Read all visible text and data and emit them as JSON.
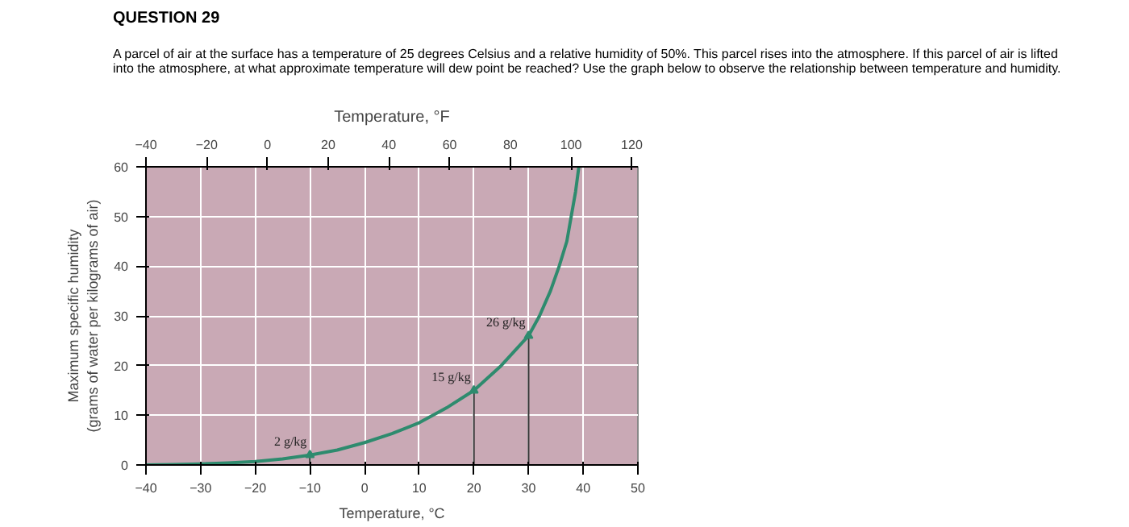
{
  "chart_data": {
    "type": "line",
    "title": "QUESTION 29",
    "subtitle": "A parcel of air at the surface has a temperature of 25 degrees Celsius and a relative humidity of 50%. This parcel rises into the atmosphere. If this parcel of air is lifted into the atmosphere, at what approximate temperature will dew point be reached? Use the graph below to observe the relationship between temperature and humidity.",
    "xlabel": "Temperature, °C",
    "x2label": "Temperature, °F",
    "ylabel": "Maximum specific humidity\n(grams of water per kilograms of air)",
    "x": [
      -40,
      -35,
      -30,
      -25,
      -20,
      -15,
      -10,
      -5,
      0,
      5,
      10,
      15,
      20,
      25,
      30,
      32,
      34,
      35.6,
      37,
      37.8,
      38.6,
      39.2
    ],
    "series": [
      {
        "color": "#2e8b6e",
        "values": [
          0,
          0.1,
          0.2,
          0.4,
          0.7,
          1.2,
          2,
          3,
          4.5,
          6.3,
          8.5,
          11.5,
          15,
          20,
          26,
          30,
          35,
          40,
          45,
          50,
          55,
          60
        ]
      }
    ],
    "xlim": [
      -40,
      50
    ],
    "xticks": [
      -40,
      -30,
      -20,
      -10,
      0,
      10,
      20,
      30,
      40,
      50
    ],
    "x2lim": [
      -40,
      122
    ],
    "x2ticks": [
      -40,
      -20,
      0,
      20,
      40,
      60,
      80,
      100,
      120
    ],
    "ylim": [
      0,
      60
    ],
    "yticks": [
      0,
      10,
      20,
      30,
      40,
      50,
      60
    ],
    "grid": true,
    "marker": "none",
    "line_style": "solid",
    "annotations": [
      {
        "text": "2 g/kg",
        "x": -10,
        "y": 2
      },
      {
        "text": "15 g/kg",
        "x": 20,
        "y": 15
      },
      {
        "text": "26 g/kg",
        "x": 30,
        "y": 26
      }
    ]
  }
}
